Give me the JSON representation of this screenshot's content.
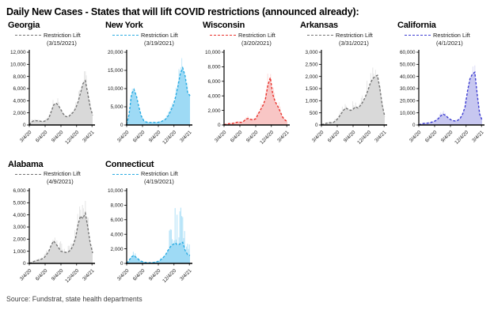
{
  "page": {
    "title": "Daily New Cases -  States that will lift COVID restrictions (announced already):",
    "source": "Source: Fundstrat,  state health departments"
  },
  "chart_data": {
    "type": "area",
    "description": "Daily new COVID cases per state; light bars are raw daily counts, dashed line is the smoothed average",
    "legend_label": "Restriction Lift",
    "x_ticks": [
      "3/4/20",
      "6/4/20",
      "9/4/20",
      "12/4/20",
      "3/4/21"
    ],
    "x_tick_positions": [
      0,
      0.25,
      0.5,
      0.747,
      0.99
    ],
    "grid": "off",
    "charts": [
      {
        "state": "Georgia",
        "lift_date": "(3/15/2021)",
        "y_max": 12000,
        "y_ticks": [
          "0",
          "2,000",
          "4,000",
          "6,000",
          "8,000",
          "10,000",
          "12,000"
        ],
        "colors": {
          "fill": "#d9d9d9",
          "line": "#757575",
          "raw": "#e7e7e7"
        },
        "jitter_min": 0.45,
        "avg_series": [
          20,
          500,
          750,
          700,
          650,
          600,
          600,
          750,
          1100,
          2200,
          3300,
          3600,
          3200,
          2500,
          1800,
          1400,
          1350,
          1700,
          2100,
          2700,
          3800,
          5200,
          6800,
          7300,
          5200,
          3000,
          1600
        ],
        "raw_series": [
          60,
          900,
          1100,
          1000,
          950,
          900,
          900,
          1100,
          1600,
          3100,
          4500,
          4800,
          4300,
          3400,
          2500,
          2000,
          1900,
          2400,
          2900,
          3700,
          5200,
          7000,
          9200,
          10300,
          7200,
          4200,
          2300
        ]
      },
      {
        "state": "New York",
        "lift_date": "(3/19/2021)",
        "y_max": 20000,
        "y_ticks": [
          "0",
          "5,000",
          "10,000",
          "15,000",
          "20,000"
        ],
        "colors": {
          "fill": "#9edaf5",
          "line": "#29abe2",
          "raw": "#c9eafa"
        },
        "jitter_min": 0.5,
        "avg_series": [
          100,
          3000,
          8500,
          9800,
          8000,
          5000,
          2500,
          1200,
          800,
          700,
          700,
          700,
          700,
          750,
          900,
          1200,
          1600,
          2500,
          3800,
          5200,
          7500,
          10500,
          14000,
          15700,
          13500,
          9000,
          8000
        ],
        "raw_series": [
          250,
          4500,
          10500,
          11500,
          9500,
          6000,
          3200,
          1600,
          1100,
          950,
          950,
          950,
          950,
          1000,
          1300,
          1700,
          2300,
          3500,
          5200,
          7000,
          10000,
          14000,
          18500,
          20000,
          17000,
          11500,
          9000
        ]
      },
      {
        "state": "Wisconsin",
        "lift_date": "(3/20/2021)",
        "y_max": 10000,
        "y_ticks": [
          "0",
          "2,000",
          "4,000",
          "6,000",
          "8,000",
          "10,000"
        ],
        "colors": {
          "fill": "#f8c6c5",
          "line": "#e8312b",
          "raw": "#fbdedd"
        },
        "jitter_min": 0.5,
        "avg_series": [
          20,
          120,
          180,
          180,
          250,
          350,
          400,
          350,
          500,
          800,
          900,
          750,
          700,
          850,
          1500,
          2100,
          2700,
          3600,
          5500,
          6500,
          4200,
          3200,
          2600,
          1900,
          1100,
          700,
          450
        ],
        "raw_series": [
          40,
          200,
          280,
          280,
          380,
          500,
          550,
          500,
          700,
          1100,
          1250,
          1050,
          1000,
          1200,
          2100,
          2900,
          3700,
          5000,
          7300,
          8000,
          5600,
          4400,
          3900,
          2700,
          1600,
          1000,
          650
        ]
      },
      {
        "state": "Arkansas",
        "lift_date": "(3/31/2021)",
        "y_max": 3000,
        "y_ticks": [
          "0",
          "500",
          "1,000",
          "1,500",
          "2,000",
          "2,500",
          "3,000"
        ],
        "colors": {
          "fill": "#d9d9d9",
          "line": "#757575",
          "raw": "#e7e7e7"
        },
        "jitter_min": 0.4,
        "avg_series": [
          10,
          40,
          70,
          90,
          90,
          110,
          180,
          300,
          450,
          600,
          700,
          650,
          600,
          650,
          750,
          700,
          800,
          950,
          1150,
          1400,
          1700,
          1900,
          2000,
          2050,
          1500,
          800,
          350
        ],
        "raw_series": [
          20,
          80,
          130,
          160,
          160,
          200,
          300,
          480,
          700,
          900,
          1050,
          1000,
          950,
          1000,
          1150,
          1050,
          1200,
          1400,
          1700,
          2000,
          2400,
          2600,
          2750,
          2800,
          2100,
          1200,
          550
        ]
      },
      {
        "state": "California",
        "lift_date": "(4/1/2021)",
        "y_max": 60000,
        "y_ticks": [
          "0",
          "10,000",
          "20,000",
          "30,000",
          "40,000",
          "50,000",
          "60,000"
        ],
        "colors": {
          "fill": "#c7c7f0",
          "line": "#3b3bd1",
          "raw": "#dedef7"
        },
        "jitter_min": 0.45,
        "avg_series": [
          100,
          900,
          1300,
          1400,
          1700,
          2100,
          2800,
          3600,
          5200,
          7500,
          9000,
          7800,
          6000,
          4500,
          3600,
          3300,
          3800,
          5500,
          9000,
          15000,
          28000,
          38000,
          42000,
          43500,
          25000,
          9000,
          3800
        ],
        "raw_series": [
          250,
          1400,
          2000,
          2100,
          2500,
          3100,
          4000,
          5200,
          7200,
          10500,
          12000,
          10500,
          8200,
          6200,
          5000,
          4600,
          5300,
          7500,
          12500,
          21000,
          38000,
          50000,
          53000,
          52000,
          33000,
          13000,
          5500
        ]
      },
      {
        "state": "Alabama",
        "lift_date": "(4/9/2021)",
        "y_max": 6000,
        "y_ticks": [
          "0",
          "1,000",
          "2,000",
          "3,000",
          "4,000",
          "5,000",
          "6,000"
        ],
        "colors": {
          "fill": "#d9d9d9",
          "line": "#757575",
          "raw": "#e7e7e7"
        },
        "jitter_min": 0.45,
        "avg_series": [
          10,
          80,
          170,
          230,
          280,
          350,
          450,
          700,
          1000,
          1500,
          1850,
          1600,
          1300,
          1000,
          950,
          900,
          950,
          1100,
          1500,
          2100,
          3200,
          3900,
          3700,
          4150,
          3000,
          1700,
          850
        ],
        "raw_series": [
          25,
          160,
          300,
          380,
          450,
          550,
          700,
          1050,
          1500,
          2100,
          2500,
          2200,
          1900,
          1900,
          1500,
          1400,
          1500,
          1700,
          2300,
          3000,
          4400,
          5100,
          4900,
          5450,
          4100,
          2500,
          1300
        ]
      },
      {
        "state": "Connecticut",
        "lift_date": "(4/19/2021)",
        "y_max": 10000,
        "y_ticks": [
          "0",
          "2,000",
          "4,000",
          "6,000",
          "8,000",
          "10,000"
        ],
        "colors": {
          "fill": "#9edaf5",
          "line": "#29abe2",
          "raw": "#b5e3f8"
        },
        "jitter_min": 0.12,
        "avg_series": [
          20,
          400,
          900,
          1100,
          800,
          500,
          300,
          180,
          120,
          100,
          100,
          120,
          180,
          300,
          500,
          800,
          1200,
          1800,
          2300,
          2600,
          2800,
          2500,
          2700,
          2900,
          1800,
          1200,
          1100
        ],
        "raw_series": [
          40,
          700,
          1500,
          1700,
          1200,
          800,
          450,
          280,
          200,
          160,
          160,
          200,
          300,
          500,
          900,
          1500,
          2600,
          4200,
          5200,
          6200,
          8300,
          6000,
          7800,
          8400,
          4600,
          3000,
          4200
        ]
      }
    ]
  }
}
